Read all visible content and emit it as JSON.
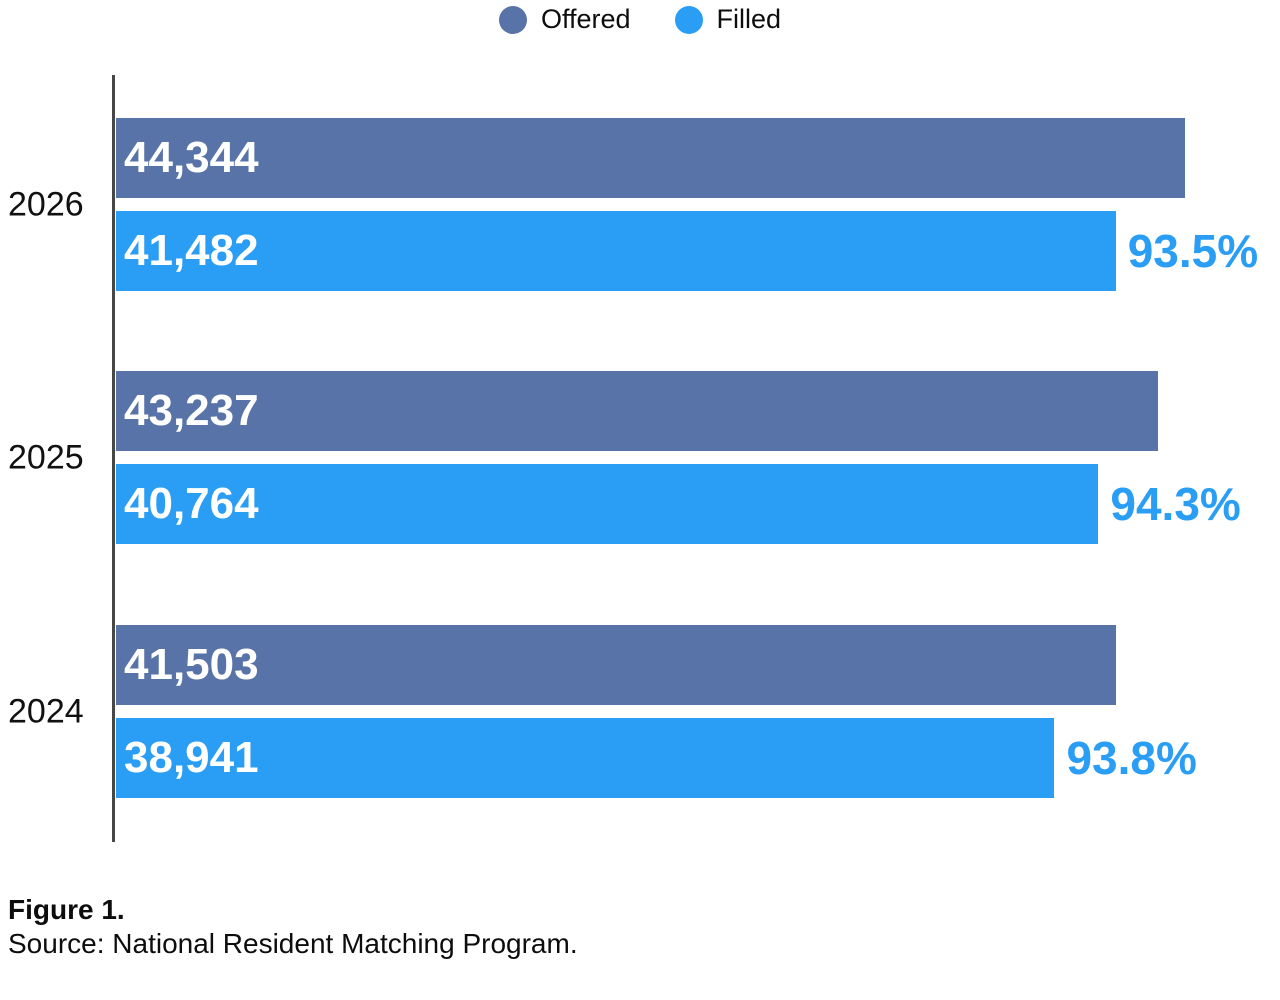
{
  "colors": {
    "offered": "#5873A8",
    "filled": "#2A9DF4",
    "percent_text": "#2A9DF4",
    "axis": "#474747",
    "bar_value_text": "#FFFFFF",
    "text": "#0D0D0D"
  },
  "legend": {
    "items": [
      {
        "label": "Offered",
        "icon": "circle-dot-icon",
        "color": "#5873A8"
      },
      {
        "label": "Filled",
        "icon": "circle-dot-icon",
        "color": "#2A9DF4"
      }
    ]
  },
  "chart_data": {
    "type": "bar",
    "orientation": "horizontal",
    "title": "",
    "xlabel": "",
    "ylabel": "",
    "categories": [
      "2026",
      "2025",
      "2024"
    ],
    "series": [
      {
        "name": "Offered",
        "values": [
          44344,
          43237,
          41503
        ]
      },
      {
        "name": "Filled",
        "values": [
          41482,
          40764,
          38941
        ]
      }
    ],
    "annotations": [
      "93.5%",
      "94.3%",
      "93.8%"
    ],
    "xlim": [
      0,
      48300
    ],
    "grid": false,
    "legend_position": "top",
    "groups": [
      {
        "year": "2026",
        "offered": 44344,
        "offered_label": "44,344",
        "filled": 41482,
        "filled_label": "41,482",
        "fill_rate": "93.5%"
      },
      {
        "year": "2025",
        "offered": 43237,
        "offered_label": "43,237",
        "filled": 40764,
        "filled_label": "40,764",
        "fill_rate": "94.3%"
      },
      {
        "year": "2024",
        "offered": 41503,
        "offered_label": "41,503",
        "filled": 38941,
        "filled_label": "38,941",
        "fill_rate": "93.8%"
      }
    ]
  },
  "footer": {
    "figure_label": "Figure 1.",
    "source": "Source: National Resident Matching Program."
  }
}
